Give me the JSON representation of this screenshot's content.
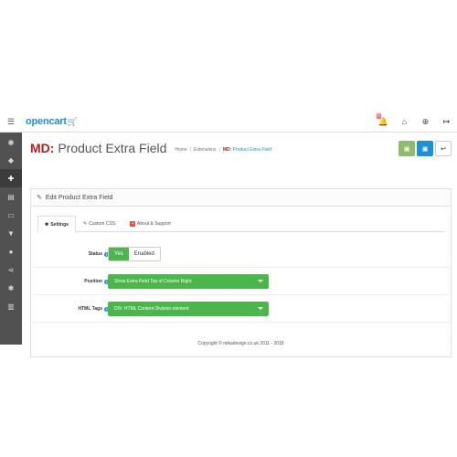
{
  "header": {
    "logo_text": "opencart",
    "notification_count": "0"
  },
  "sidebar": {
    "items": [
      {
        "icon": "dashboard-icon"
      },
      {
        "icon": "tags-icon"
      },
      {
        "icon": "puzzle-icon",
        "active": true
      },
      {
        "icon": "monitor-icon"
      },
      {
        "icon": "desktop-icon"
      },
      {
        "icon": "shopping-cart-icon"
      },
      {
        "icon": "user-icon"
      },
      {
        "icon": "share-icon"
      },
      {
        "icon": "cog-icon"
      },
      {
        "icon": "bar-chart-icon"
      }
    ]
  },
  "page": {
    "title_prefix": "MD:",
    "title": "Product Extra Field",
    "breadcrumb": {
      "home": "Home",
      "extensions": "Extensions",
      "current_prefix": "MD:",
      "current": "Product Extra Field"
    }
  },
  "panel": {
    "heading": "Edit Product Extra Field",
    "tabs": [
      {
        "label": "Settings",
        "active": true
      },
      {
        "label": "Custom CSS"
      },
      {
        "label": "About & Support"
      }
    ],
    "form": {
      "status": {
        "label": "Status",
        "yes": "Yes",
        "value": "Enabled"
      },
      "position": {
        "label": "Position",
        "value": "Show Extra Field Top of Column Right"
      },
      "html_tags": {
        "label": "HTML Tags",
        "value": "DIV: HTML Content Division element"
      }
    },
    "copyright": "Copyright © mikadesign.co.uk 2011 - 2018"
  },
  "colors": {
    "brand_blue": "#1e91cf",
    "accent_red": "#b21f1f",
    "success_green": "#4cb64c",
    "sidebar_bg": "#515151"
  }
}
